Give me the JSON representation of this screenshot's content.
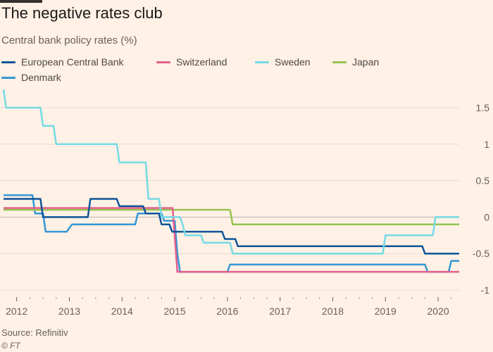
{
  "title": "The negative rates club",
  "subtitle": "Central bank policy rates (%)",
  "source": "Source: Refinitiv",
  "credit": "© FT",
  "chart_data": {
    "type": "line",
    "title": "The negative rates club",
    "ylabel": "Central bank policy rates (%)",
    "xlim": [
      2011.75,
      2020.4
    ],
    "ylim": [
      -1,
      1.75
    ],
    "yticks": [
      1.5,
      1,
      0.5,
      0,
      -0.5,
      -1
    ],
    "ytick_labels": [
      "1.5",
      "1",
      "0.5",
      "0",
      "-0.5",
      "-1"
    ],
    "xticks": [
      2012,
      2013,
      2014,
      2015,
      2016,
      2017,
      2018,
      2019,
      2020
    ],
    "xtick_labels": [
      "2012",
      "2013",
      "2014",
      "2015",
      "2016",
      "2017",
      "2018",
      "2019",
      "2020"
    ],
    "grid": true,
    "legend_position": "top-left",
    "series": [
      {
        "name": "European Central Bank",
        "color": "#0f5499",
        "points": [
          [
            2011.75,
            0.25
          ],
          [
            2012.45,
            0.25
          ],
          [
            2012.5,
            0
          ],
          [
            2013.35,
            0
          ],
          [
            2013.4,
            0.25
          ],
          [
            2013.9,
            0.25
          ],
          [
            2013.95,
            0.15
          ],
          [
            2014.4,
            0.15
          ],
          [
            2014.45,
            0.05
          ],
          [
            2014.7,
            0.05
          ],
          [
            2014.75,
            -0.1
          ],
          [
            2014.9,
            -0.1
          ],
          [
            2014.95,
            -0.2
          ],
          [
            2015.9,
            -0.2
          ],
          [
            2015.95,
            -0.3
          ],
          [
            2016.15,
            -0.3
          ],
          [
            2016.2,
            -0.4
          ],
          [
            2019.7,
            -0.4
          ],
          [
            2019.75,
            -0.5
          ],
          [
            2020.4,
            -0.5
          ]
        ]
      },
      {
        "name": "Switzerland",
        "color": "#e65e8c",
        "points": [
          [
            2011.75,
            0.125
          ],
          [
            2014.96,
            0.125
          ],
          [
            2015.05,
            -0.75
          ],
          [
            2020.4,
            -0.75
          ]
        ]
      },
      {
        "name": "Sweden",
        "color": "#74dae6",
        "points": [
          [
            2011.75,
            1.75
          ],
          [
            2011.8,
            1.5
          ],
          [
            2012.45,
            1.5
          ],
          [
            2012.5,
            1.25
          ],
          [
            2012.7,
            1.25
          ],
          [
            2012.75,
            1
          ],
          [
            2013.9,
            1
          ],
          [
            2013.95,
            0.75
          ],
          [
            2014.45,
            0.75
          ],
          [
            2014.5,
            0.25
          ],
          [
            2014.7,
            0.25
          ],
          [
            2014.75,
            0
          ],
          [
            2015.1,
            0
          ],
          [
            2015.15,
            -0.1
          ],
          [
            2015.2,
            -0.25
          ],
          [
            2015.5,
            -0.25
          ],
          [
            2015.55,
            -0.35
          ],
          [
            2016.05,
            -0.35
          ],
          [
            2016.1,
            -0.5
          ],
          [
            2018.95,
            -0.5
          ],
          [
            2019.0,
            -0.25
          ],
          [
            2019.9,
            -0.25
          ],
          [
            2019.95,
            0
          ],
          [
            2020.4,
            0
          ]
        ]
      },
      {
        "name": "Japan",
        "color": "#96c350",
        "points": [
          [
            2011.75,
            0.1
          ],
          [
            2016.05,
            0.1
          ],
          [
            2016.1,
            -0.1
          ],
          [
            2020.4,
            -0.1
          ]
        ]
      },
      {
        "name": "Denmark",
        "color": "#3497d4",
        "points": [
          [
            2011.75,
            0.3
          ],
          [
            2012.3,
            0.3
          ],
          [
            2012.35,
            0.05
          ],
          [
            2012.5,
            0.05
          ],
          [
            2012.55,
            -0.2
          ],
          [
            2012.95,
            -0.2
          ],
          [
            2013.0,
            -0.15
          ],
          [
            2013.05,
            -0.1
          ],
          [
            2014.25,
            -0.1
          ],
          [
            2014.3,
            0.05
          ],
          [
            2014.75,
            0.05
          ],
          [
            2014.8,
            -0.05
          ],
          [
            2015.0,
            -0.05
          ],
          [
            2015.05,
            -0.5
          ],
          [
            2015.1,
            -0.75
          ],
          [
            2016.0,
            -0.75
          ],
          [
            2016.05,
            -0.65
          ],
          [
            2019.75,
            -0.65
          ],
          [
            2019.8,
            -0.75
          ],
          [
            2020.2,
            -0.75
          ],
          [
            2020.25,
            -0.6
          ],
          [
            2020.4,
            -0.6
          ]
        ]
      }
    ]
  }
}
